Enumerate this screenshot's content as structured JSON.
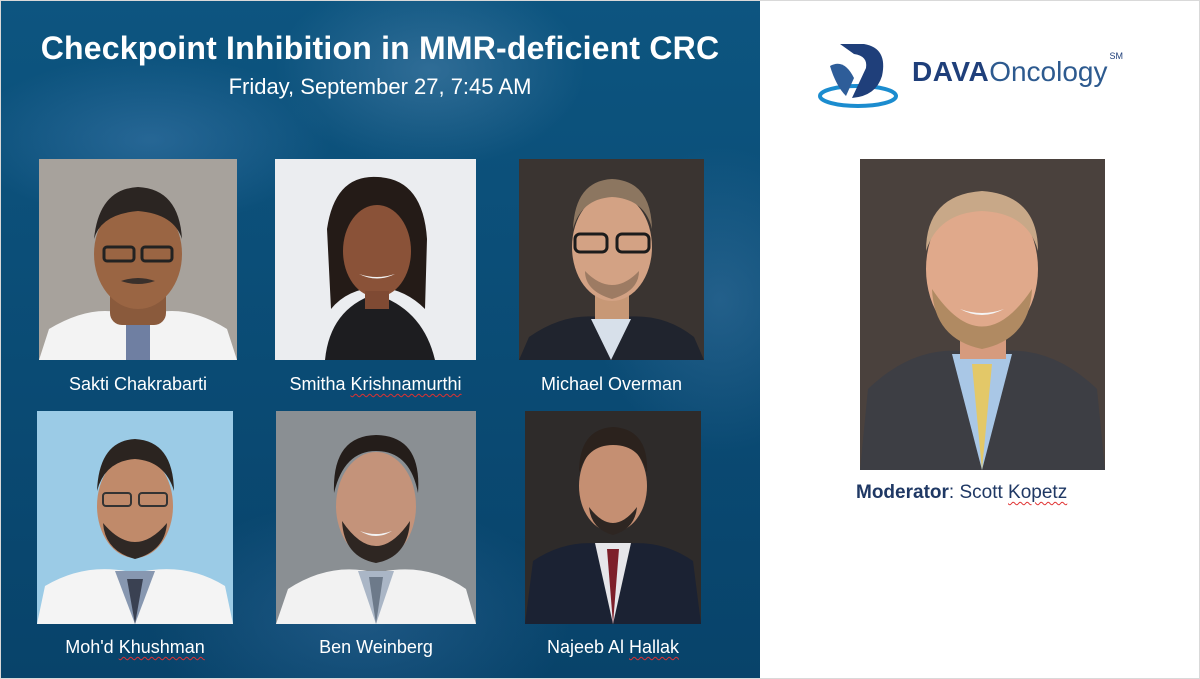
{
  "slide": {
    "title": "Checkpoint Inhibition in MMR-deficient CRC",
    "subtitle": "Friday, September 27, 7:45 AM"
  },
  "panelists": [
    {
      "first": "Sakti ",
      "last": "Chakrabarti",
      "last_flagged": false
    },
    {
      "first": "Smitha ",
      "last": "Krishnamurthi",
      "last_flagged": true
    },
    {
      "first": "Michael ",
      "last": "Overman",
      "last_flagged": false
    },
    {
      "first": "Moh'd ",
      "last": "Khushman",
      "last_flagged": true
    },
    {
      "first": "Ben ",
      "last": "Weinberg",
      "last_flagged": false
    },
    {
      "first": "Najeeb Al ",
      "last": "Hallak",
      "last_flagged": true
    }
  ],
  "logo": {
    "brand_bold": "DAVA",
    "brand_regular": "Oncology",
    "mark": "SM"
  },
  "moderator": {
    "role": "Moderator",
    "separator": ": ",
    "first": "Scott ",
    "last": "Kopetz"
  },
  "colors": {
    "panel_blue": "#0a4a73",
    "logo_navy": "#1f3f7a",
    "moderator_text": "#1f3864",
    "spellcheck_red": "#e03131"
  }
}
